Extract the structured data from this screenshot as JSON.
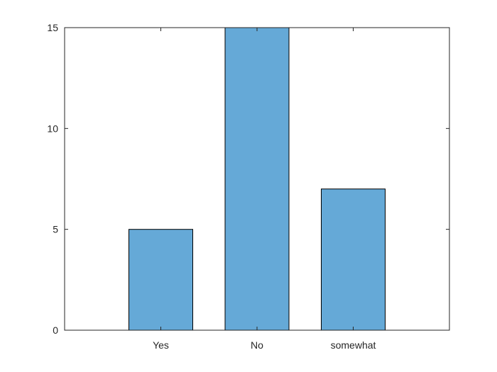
{
  "chart_data": {
    "type": "bar",
    "categories": [
      "Yes",
      "No",
      "somewhat"
    ],
    "values": [
      5,
      15,
      7
    ],
    "yticks": [
      0,
      5,
      10,
      15
    ],
    "ylim": [
      0,
      15
    ],
    "title": "",
    "xlabel": "",
    "ylabel": "",
    "grid": false,
    "box": true,
    "bar_color": "#65a9d7",
    "bar_edge_color": "#000000",
    "axis_color": "#262626"
  }
}
